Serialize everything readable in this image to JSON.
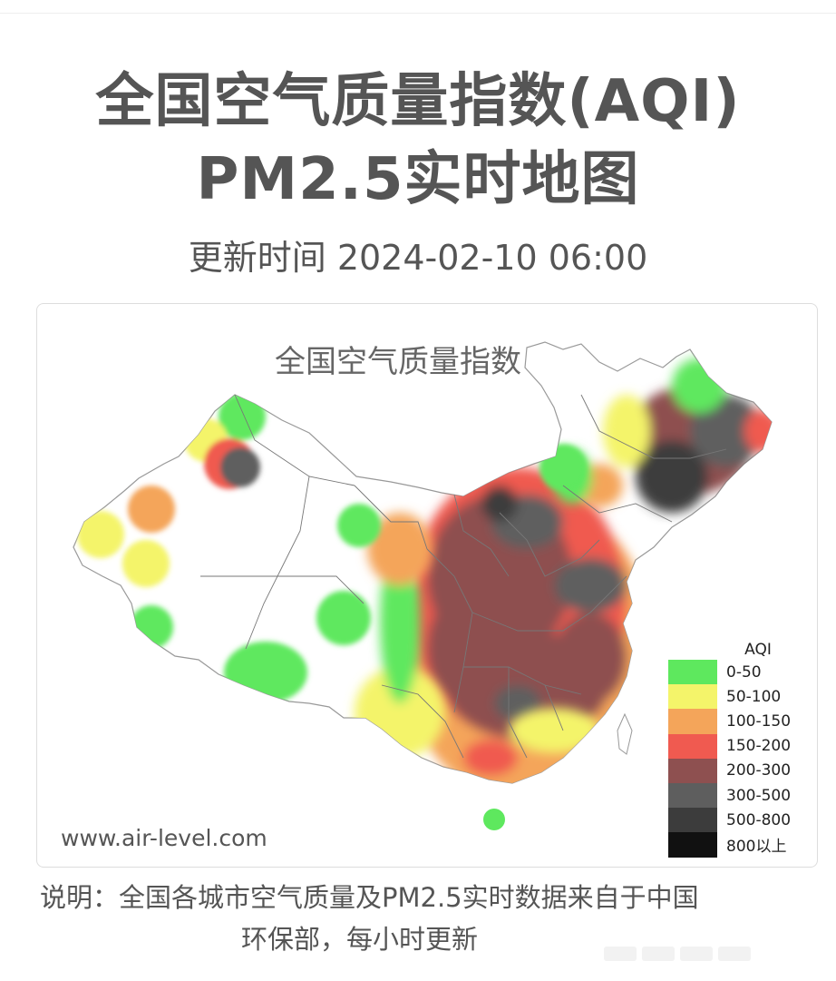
{
  "header": {
    "title_line1": "全国空气质量指数(AQI)",
    "title_line2": "PM2.5实时地图",
    "updated": "更新时间 2024-02-10 06:00"
  },
  "map": {
    "title": "全国空气质量指数",
    "website": "www.air-level.com",
    "legend_title": "AQI",
    "legend": [
      {
        "label": "0-50",
        "color": "#5ee85e"
      },
      {
        "label": "50-100",
        "color": "#f4f46a"
      },
      {
        "label": "100-150",
        "color": "#f4a55a"
      },
      {
        "label": "150-200",
        "color": "#f05a50"
      },
      {
        "label": "200-300",
        "color": "#8e5050"
      },
      {
        "label": "300-500",
        "color": "#5e5e5e"
      },
      {
        "label": "500-800",
        "color": "#3c3c3c"
      },
      {
        "label": "800以上",
        "color": "#111111"
      }
    ]
  },
  "note": {
    "line1": "说明：全国各城市空气质量及PM2.5实时数据来自于中国",
    "line2": "环保部，每小时更新"
  }
}
